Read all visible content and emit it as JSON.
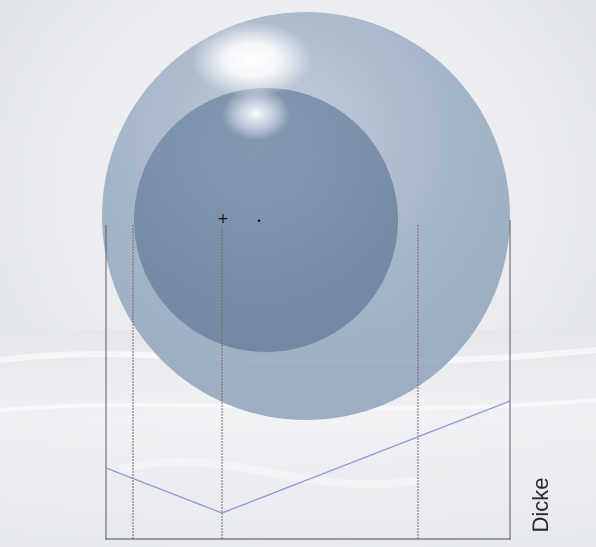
{
  "diagram": {
    "axis_label": "Dicke",
    "marker_plus": "+",
    "marker_dot": "•"
  }
}
